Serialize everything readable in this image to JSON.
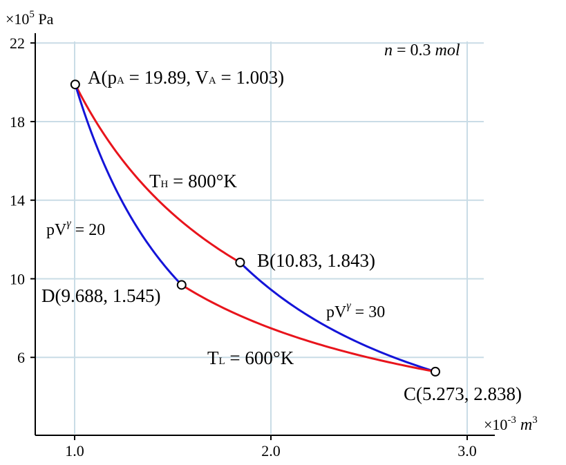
{
  "chart_data": {
    "type": "line",
    "title": "",
    "annotation": "n = 0.3 mol",
    "y_unit_label": "×10⁵ Pa",
    "x_unit_label": "×10⁻³ m³",
    "xlim": [
      0.8,
      3.2
    ],
    "ylim": [
      2.0,
      22.0
    ],
    "x_ticks": [
      1.0,
      2.0,
      3.0
    ],
    "x_tick_labels": [
      "1.0",
      "2.0",
      "3.0"
    ],
    "y_ticks": [
      6,
      10,
      14,
      18,
      22
    ],
    "y_tick_labels": [
      "6",
      "10",
      "14",
      "18",
      "22"
    ],
    "grid": true,
    "colors": {
      "isotherm": "#e8141c",
      "adiabat": "#1414d8",
      "grid": "#c9dce6"
    },
    "points": [
      {
        "name": "A",
        "label": "A(pA = 19.89, VA = 1.003)",
        "p": 19.89,
        "V": 1.003
      },
      {
        "name": "B",
        "label": "B(10.83, 1.843)",
        "p": 10.83,
        "V": 1.843
      },
      {
        "name": "C",
        "label": "C(5.273, 2.838)",
        "p": 5.273,
        "V": 2.838
      },
      {
        "name": "D",
        "label": "D(9.688, 1.545)",
        "p": 9.688,
        "V": 1.545
      }
    ],
    "series": [
      {
        "name": "T_H = 800°K",
        "kind": "isotherm",
        "from": "A",
        "to": "B",
        "label": "TH = 800°K"
      },
      {
        "name": "pV^γ = 30",
        "kind": "adiabat",
        "from": "B",
        "to": "C",
        "label": "pVγ = 30"
      },
      {
        "name": "T_L = 600°K",
        "kind": "isotherm",
        "from": "C",
        "to": "D",
        "label": "TL = 600°K"
      },
      {
        "name": "pV^γ = 20",
        "kind": "adiabat",
        "from": "D",
        "to": "A",
        "label": "pVγ = 20"
      }
    ]
  }
}
